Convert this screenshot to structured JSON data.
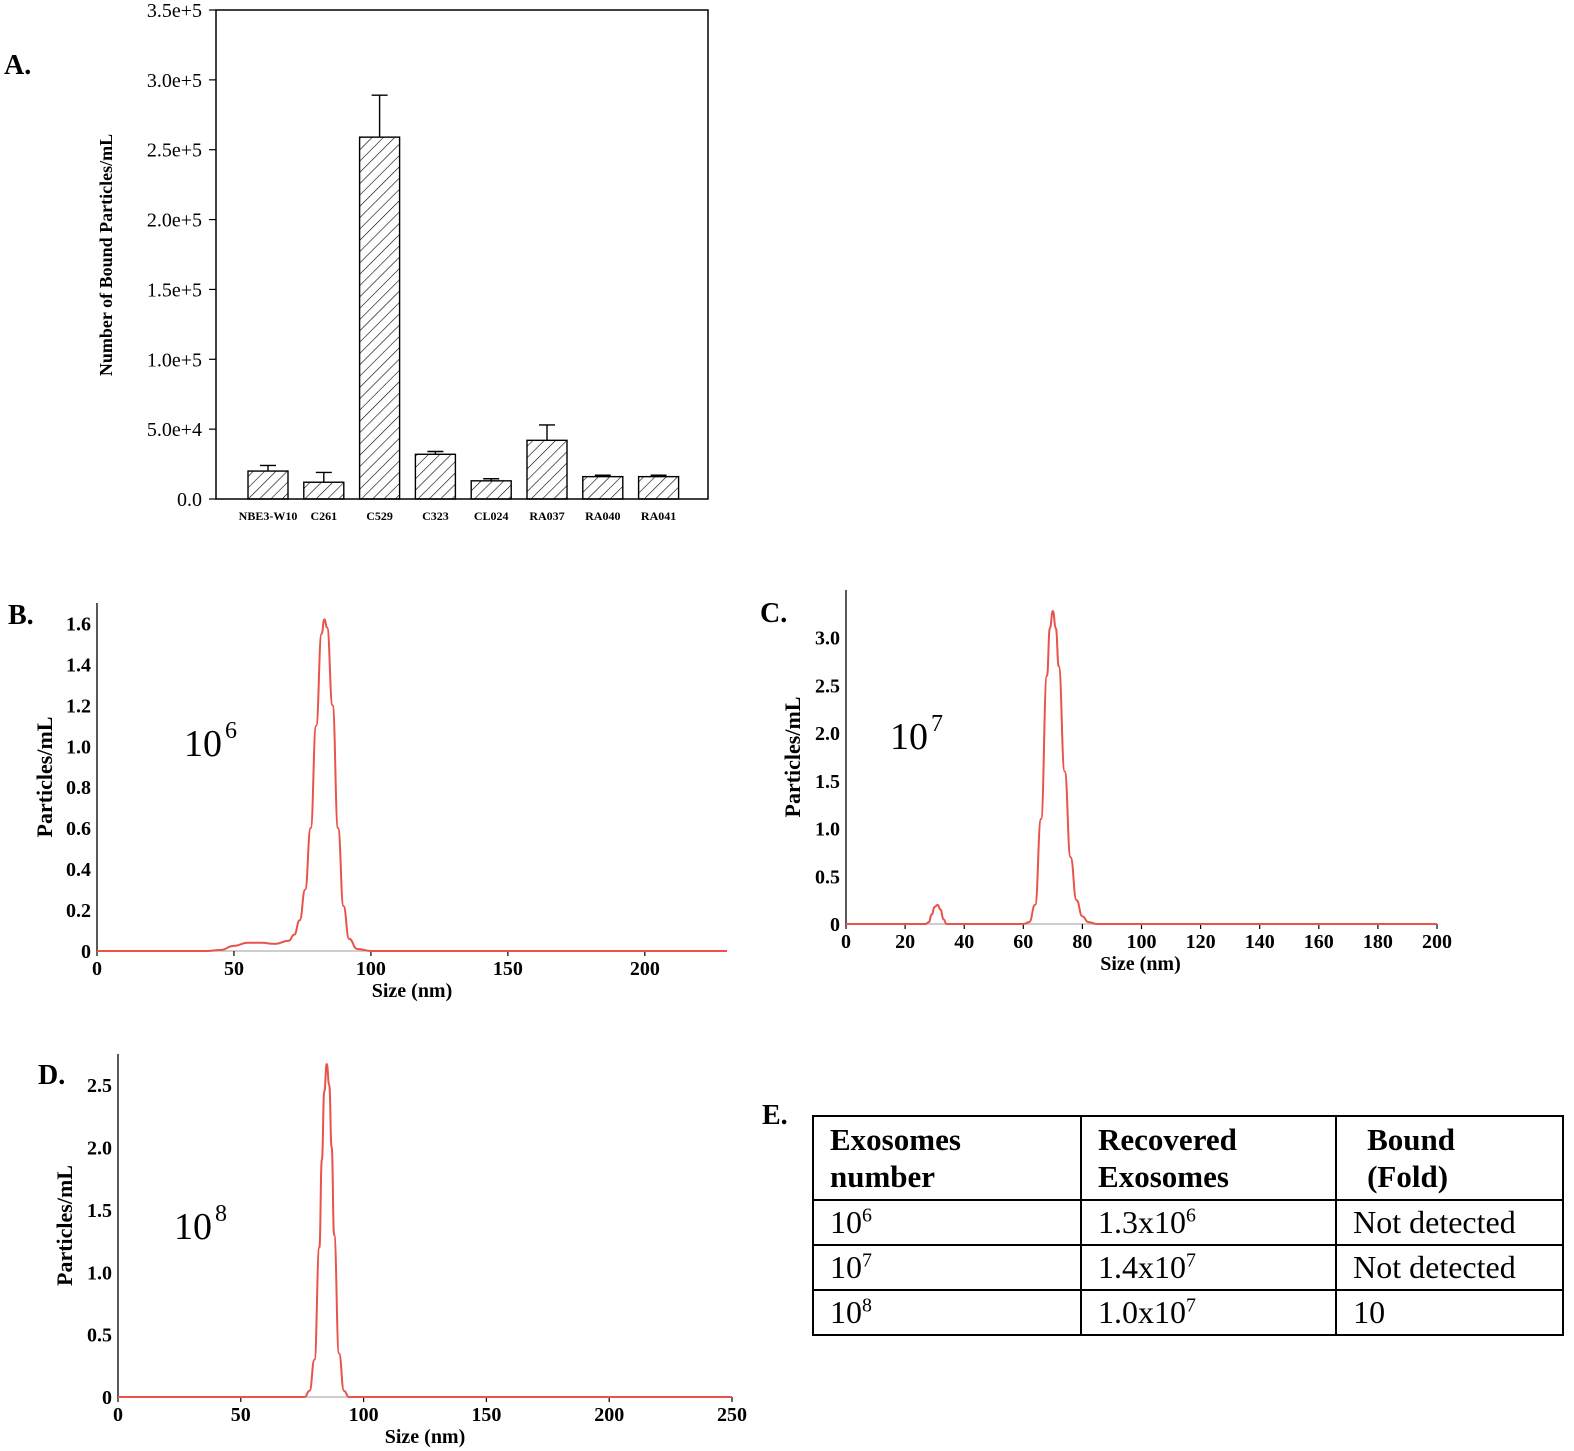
{
  "panels": {
    "a": "A.",
    "b": "B.",
    "c": "C.",
    "d": "D.",
    "e": "E."
  },
  "colors": {
    "bar_fill": "#ffffff",
    "bar_hatch": "#000000",
    "line": "#e8534a",
    "baseline": "#b0b0b0"
  },
  "chart_data": [
    {
      "id": "A",
      "type": "bar",
      "title": "",
      "xlabel": "",
      "ylabel": "Number of Bound Particles/mL",
      "categories": [
        "NBE3-W10",
        "C261",
        "C529",
        "C323",
        "CL024",
        "RA037",
        "RA040",
        "RA041"
      ],
      "values": [
        20000,
        12000,
        259000,
        32000,
        13000,
        42000,
        16000,
        16000
      ],
      "error_upper": [
        24000,
        19000,
        289000,
        34000,
        14500,
        53000,
        17000,
        17000
      ],
      "ylim": [
        0,
        350000
      ],
      "yticks": [
        0,
        50000,
        100000,
        150000,
        200000,
        250000,
        300000,
        350000
      ],
      "ytick_labels": [
        "0.0",
        "5.0e+4",
        "1.0e+5",
        "1.5e+5",
        "2.0e+5",
        "2.5e+5",
        "3.0e+5",
        "3.5e+5"
      ],
      "fill": "diagonal hatch",
      "grid": false
    },
    {
      "id": "B",
      "type": "line",
      "xlabel": "Size (nm)",
      "ylabel": "Particles/mL",
      "multiplier": {
        "base": "10",
        "exp": "6"
      },
      "xlim": [
        0,
        230
      ],
      "ylim": [
        0,
        1.7
      ],
      "xticks": [
        0,
        50,
        100,
        150,
        200
      ],
      "xtick_labels": [
        "0",
        "50",
        "100",
        "150",
        "200"
      ],
      "yticks": [
        0,
        0.2,
        0.4,
        0.6,
        0.8,
        1.0,
        1.2,
        1.4,
        1.6
      ],
      "ytick_labels": [
        "0",
        "0.2",
        "0.4",
        "0.6",
        "0.8",
        "1.0",
        "1.2",
        "1.4",
        "1.6"
      ],
      "series": [
        {
          "x": [
            0,
            40,
            45,
            50,
            55,
            60,
            65,
            70,
            72,
            74,
            76,
            78,
            80,
            82,
            83,
            84,
            86,
            88,
            90,
            92,
            95,
            100,
            150,
            230
          ],
          "values": [
            0,
            0,
            0.005,
            0.025,
            0.04,
            0.04,
            0.035,
            0.05,
            0.08,
            0.15,
            0.3,
            0.6,
            1.1,
            1.55,
            1.62,
            1.58,
            1.2,
            0.6,
            0.22,
            0.06,
            0.01,
            0,
            0,
            0
          ]
        }
      ],
      "grid": false
    },
    {
      "id": "C",
      "type": "line",
      "xlabel": "Size (nm)",
      "ylabel": "Particles/mL",
      "multiplier": {
        "base": "10",
        "exp": "7"
      },
      "xlim": [
        0,
        200
      ],
      "ylim": [
        0,
        3.5
      ],
      "xticks": [
        0,
        20,
        40,
        60,
        80,
        100,
        120,
        140,
        160,
        180,
        200
      ],
      "xtick_labels": [
        "0",
        "20",
        "40",
        "60",
        "80",
        "100",
        "120",
        "140",
        "160",
        "180",
        "200"
      ],
      "yticks": [
        0,
        0.5,
        1.0,
        1.5,
        2.0,
        2.5,
        3.0
      ],
      "ytick_labels": [
        "0",
        "0.5",
        "1.0",
        "1.5",
        "2.0",
        "2.5",
        "3.0"
      ],
      "series": [
        {
          "x": [
            0,
            27,
            28,
            29,
            30,
            31,
            32,
            33,
            34,
            60,
            62,
            64,
            66,
            68,
            69,
            70,
            71,
            72,
            74,
            76,
            78,
            80,
            82,
            85,
            200
          ],
          "values": [
            0,
            0,
            0.02,
            0.1,
            0.18,
            0.2,
            0.15,
            0.05,
            0,
            0,
            0.02,
            0.2,
            1.1,
            2.6,
            3.1,
            3.28,
            3.1,
            2.7,
            1.6,
            0.7,
            0.25,
            0.08,
            0.02,
            0,
            0
          ]
        }
      ],
      "grid": false
    },
    {
      "id": "D",
      "type": "line",
      "xlabel": "Size (nm)",
      "ylabel": "Particles/mL",
      "multiplier": {
        "base": "10",
        "exp": "8"
      },
      "xlim": [
        0,
        250
      ],
      "ylim": [
        0,
        2.75
      ],
      "xticks": [
        0,
        50,
        100,
        150,
        200,
        250
      ],
      "xtick_labels": [
        "0",
        "50",
        "100",
        "150",
        "200",
        "250"
      ],
      "yticks": [
        0,
        0.5,
        1.0,
        1.5,
        2.0,
        2.5
      ],
      "ytick_labels": [
        "0",
        "0.5",
        "1.0",
        "1.5",
        "2.0",
        "2.5"
      ],
      "series": [
        {
          "x": [
            0,
            76,
            78,
            80,
            82,
            83,
            84,
            85,
            86,
            87,
            88,
            90,
            92,
            94,
            250
          ],
          "values": [
            0,
            0,
            0.05,
            0.3,
            1.2,
            1.9,
            2.45,
            2.67,
            2.5,
            2.0,
            1.3,
            0.35,
            0.05,
            0,
            0
          ]
        }
      ],
      "grid": false
    }
  ],
  "table": {
    "header": {
      "c1_line1": "Exosomes",
      "c1_line2": "number",
      "c2_line1": "Recovered",
      "c2_line2": "Exosomes",
      "c3_line1": "Bound",
      "c3_line2": "(Fold)"
    },
    "rows": [
      {
        "n_base": "10",
        "n_exp": "6",
        "r_base": "1.3x10",
        "r_exp": "6",
        "fold": "Not detected"
      },
      {
        "n_base": "10",
        "n_exp": "7",
        "r_base": "1.4x10",
        "r_exp": "7",
        "fold": "Not detected"
      },
      {
        "n_base": "10",
        "n_exp": "8",
        "r_base": "1.0x10",
        "r_exp": "7",
        "fold": "10"
      }
    ]
  }
}
